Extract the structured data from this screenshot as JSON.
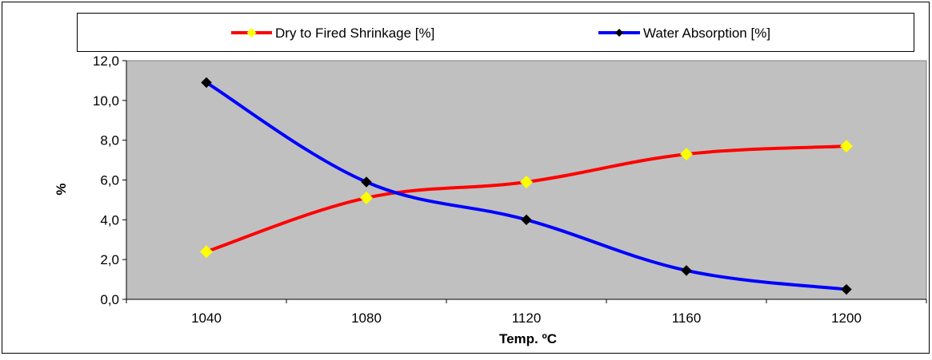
{
  "chart_data": {
    "type": "line",
    "title": "",
    "xlabel": "Temp. ºC",
    "ylabel": "%",
    "categories": [
      "1040",
      "1080",
      "1120",
      "1160",
      "1200"
    ],
    "ylim": [
      0,
      12
    ],
    "y_ticks": [
      "0,0",
      "2,0",
      "4,0",
      "6,0",
      "8,0",
      "10,0",
      "12,0"
    ],
    "grid": false,
    "legend_position": "top",
    "plot_background": "#c0c0c0",
    "series": [
      {
        "name": "Dry to Fired Shrinkage [%]",
        "values": [
          2.4,
          5.1,
          5.9,
          7.3,
          7.7
        ],
        "line_color": "#ff0000",
        "marker_color": "#ffff00",
        "marker": "diamond"
      },
      {
        "name": "Water Absorption [%]",
        "values": [
          10.9,
          5.9,
          4.0,
          1.45,
          0.5
        ],
        "line_color": "#0000ff",
        "marker_color": "#000000",
        "marker": "diamond"
      }
    ]
  }
}
